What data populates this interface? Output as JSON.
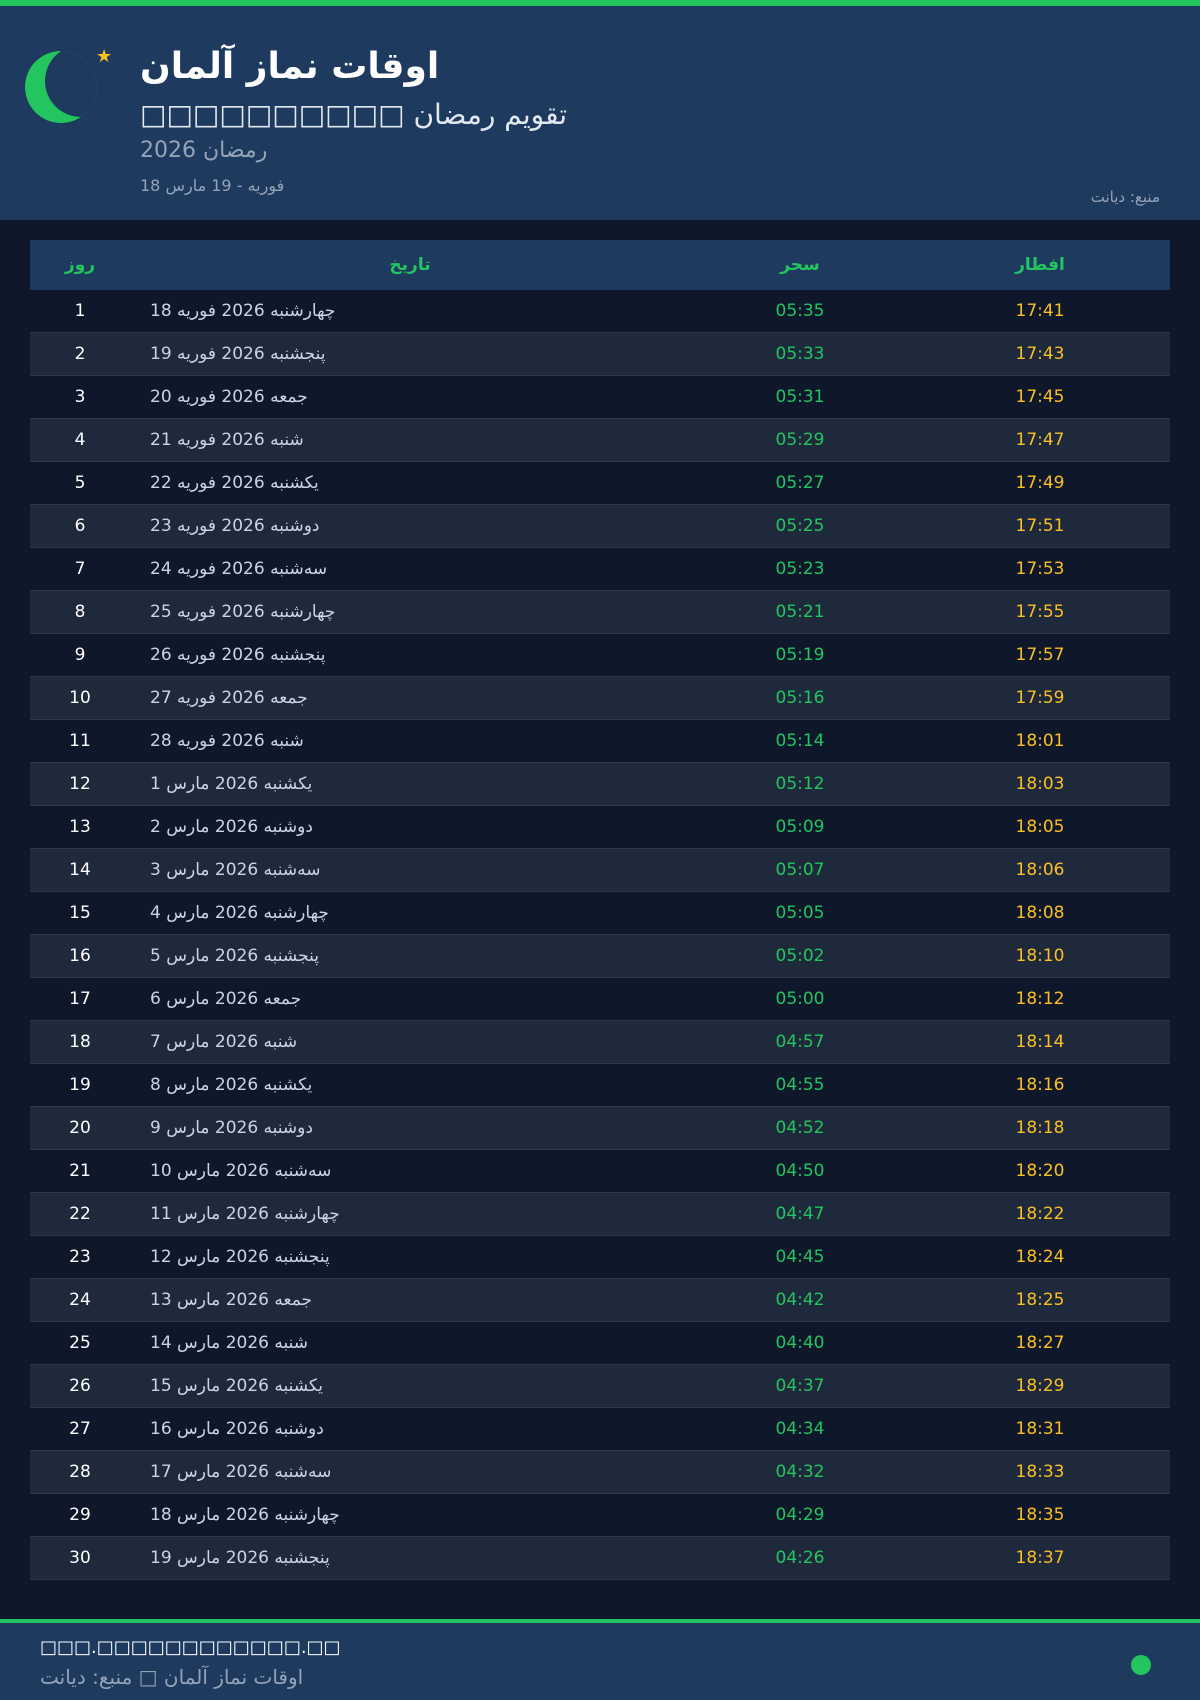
{
  "header": {
    "title": "اوقات نماز آلمان",
    "subtitle": "□□□□□□□□□□ تقویم رمضان",
    "year": "رمضان 2026",
    "range": "18 فوریه - 19 مارس",
    "source": "منبع: دیانت"
  },
  "colors": {
    "accent": "#22c55e",
    "iftar": "#fbbf24",
    "header_bg": "#1e3a5f",
    "page_bg": "#0f172a"
  },
  "icons": {
    "logo": "crescent-moon-icon",
    "star": "star-icon"
  },
  "table": {
    "headers": {
      "day": "روز",
      "date": "تاریخ",
      "suhur": "سحر",
      "iftar": "افطار"
    },
    "rows": [
      {
        "day": "1",
        "date": "چهارشنبه 2026 فوریه 18",
        "suhur": "05:35",
        "iftar": "17:41"
      },
      {
        "day": "2",
        "date": "پنجشنبه 2026 فوریه 19",
        "suhur": "05:33",
        "iftar": "17:43"
      },
      {
        "day": "3",
        "date": "جمعه 2026 فوریه 20",
        "suhur": "05:31",
        "iftar": "17:45"
      },
      {
        "day": "4",
        "date": "شنبه 2026 فوریه 21",
        "suhur": "05:29",
        "iftar": "17:47"
      },
      {
        "day": "5",
        "date": "یکشنبه 2026 فوریه 22",
        "suhur": "05:27",
        "iftar": "17:49"
      },
      {
        "day": "6",
        "date": "دوشنبه 2026 فوریه 23",
        "suhur": "05:25",
        "iftar": "17:51"
      },
      {
        "day": "7",
        "date": "سه‌شنبه 2026 فوریه 24",
        "suhur": "05:23",
        "iftar": "17:53"
      },
      {
        "day": "8",
        "date": "چهارشنبه 2026 فوریه 25",
        "suhur": "05:21",
        "iftar": "17:55"
      },
      {
        "day": "9",
        "date": "پنجشنبه 2026 فوریه 26",
        "suhur": "05:19",
        "iftar": "17:57"
      },
      {
        "day": "10",
        "date": "جمعه 2026 فوریه 27",
        "suhur": "05:16",
        "iftar": "17:59"
      },
      {
        "day": "11",
        "date": "شنبه 2026 فوریه 28",
        "suhur": "05:14",
        "iftar": "18:01"
      },
      {
        "day": "12",
        "date": "یکشنبه 2026 مارس 1",
        "suhur": "05:12",
        "iftar": "18:03"
      },
      {
        "day": "13",
        "date": "دوشنبه 2026 مارس 2",
        "suhur": "05:09",
        "iftar": "18:05"
      },
      {
        "day": "14",
        "date": "سه‌شنبه 2026 مارس 3",
        "suhur": "05:07",
        "iftar": "18:06"
      },
      {
        "day": "15",
        "date": "چهارشنبه 2026 مارس 4",
        "suhur": "05:05",
        "iftar": "18:08"
      },
      {
        "day": "16",
        "date": "پنجشنبه 2026 مارس 5",
        "suhur": "05:02",
        "iftar": "18:10"
      },
      {
        "day": "17",
        "date": "جمعه 2026 مارس 6",
        "suhur": "05:00",
        "iftar": "18:12"
      },
      {
        "day": "18",
        "date": "شنبه 2026 مارس 7",
        "suhur": "04:57",
        "iftar": "18:14"
      },
      {
        "day": "19",
        "date": "یکشنبه 2026 مارس 8",
        "suhur": "04:55",
        "iftar": "18:16"
      },
      {
        "day": "20",
        "date": "دوشنبه 2026 مارس 9",
        "suhur": "04:52",
        "iftar": "18:18"
      },
      {
        "day": "21",
        "date": "سه‌شنبه 2026 مارس 10",
        "suhur": "04:50",
        "iftar": "18:20"
      },
      {
        "day": "22",
        "date": "چهارشنبه 2026 مارس 11",
        "suhur": "04:47",
        "iftar": "18:22"
      },
      {
        "day": "23",
        "date": "پنجشنبه 2026 مارس 12",
        "suhur": "04:45",
        "iftar": "18:24"
      },
      {
        "day": "24",
        "date": "جمعه 2026 مارس 13",
        "suhur": "04:42",
        "iftar": "18:25"
      },
      {
        "day": "25",
        "date": "شنبه 2026 مارس 14",
        "suhur": "04:40",
        "iftar": "18:27"
      },
      {
        "day": "26",
        "date": "یکشنبه 2026 مارس 15",
        "suhur": "04:37",
        "iftar": "18:29"
      },
      {
        "day": "27",
        "date": "دوشنبه 2026 مارس 16",
        "suhur": "04:34",
        "iftar": "18:31"
      },
      {
        "day": "28",
        "date": "سه‌شنبه 2026 مارس 17",
        "suhur": "04:32",
        "iftar": "18:33"
      },
      {
        "day": "29",
        "date": "چهارشنبه 2026 مارس 18",
        "suhur": "04:29",
        "iftar": "18:35"
      },
      {
        "day": "30",
        "date": "پنجشنبه 2026 مارس 19",
        "suhur": "04:26",
        "iftar": "18:37"
      }
    ]
  },
  "footer": {
    "website": "□□□.□□□□□□□□□□□□.□□",
    "caption": "اوقات نماز آلمان □ منبع: دیانت"
  }
}
